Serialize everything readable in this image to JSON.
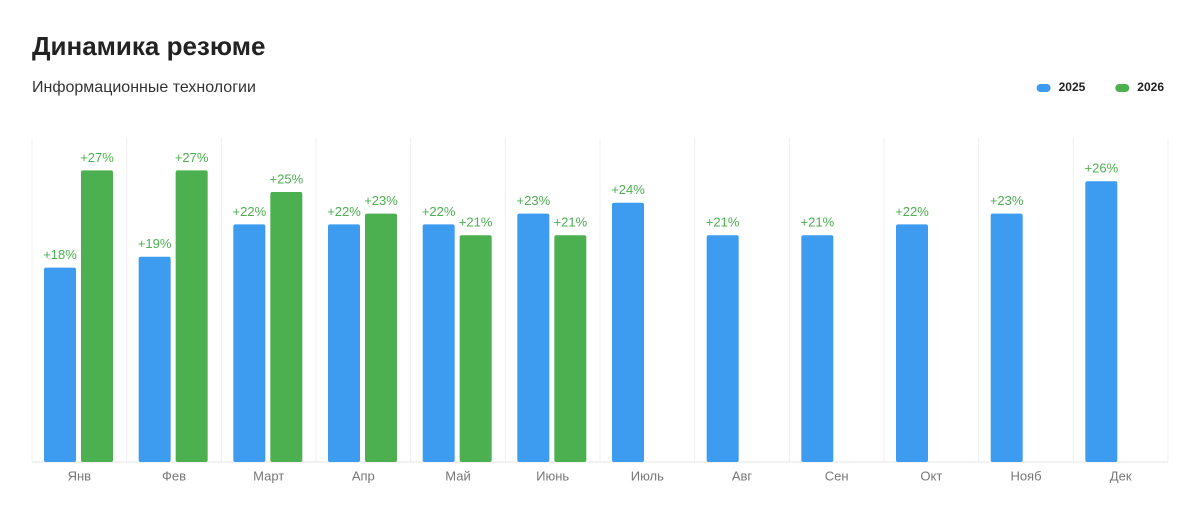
{
  "chart_data": {
    "type": "bar",
    "title": "Динамика резюме",
    "subtitle": "Информационные технологии",
    "categories": [
      "Янв",
      "Фев",
      "Март",
      "Апр",
      "Май",
      "Июнь",
      "Июль",
      "Авг",
      "Сен",
      "Окт",
      "Нояб",
      "Дек"
    ],
    "series": [
      {
        "name": "2025",
        "color": "#3d9bf0",
        "values": [
          18,
          19,
          22,
          22,
          22,
          23,
          24,
          21,
          21,
          22,
          23,
          26
        ],
        "value_labels": [
          "+18%",
          "+19%",
          "+22%",
          "+22%",
          "+22%",
          "+23%",
          "+24%",
          "+21%",
          "+21%",
          "+22%",
          "+23%",
          "+26%"
        ]
      },
      {
        "name": "2026",
        "color": "#4caf50",
        "values": [
          27,
          27,
          25,
          23,
          21,
          21,
          null,
          null,
          null,
          null,
          null,
          null
        ],
        "value_labels": [
          "+27%",
          "+27%",
          "+25%",
          "+23%",
          "+21%",
          "+21%",
          null,
          null,
          null,
          null,
          null,
          null
        ]
      }
    ],
    "ylim": [
      0,
      30
    ],
    "value_label_color": "#4caf50",
    "legend": "top-right"
  }
}
